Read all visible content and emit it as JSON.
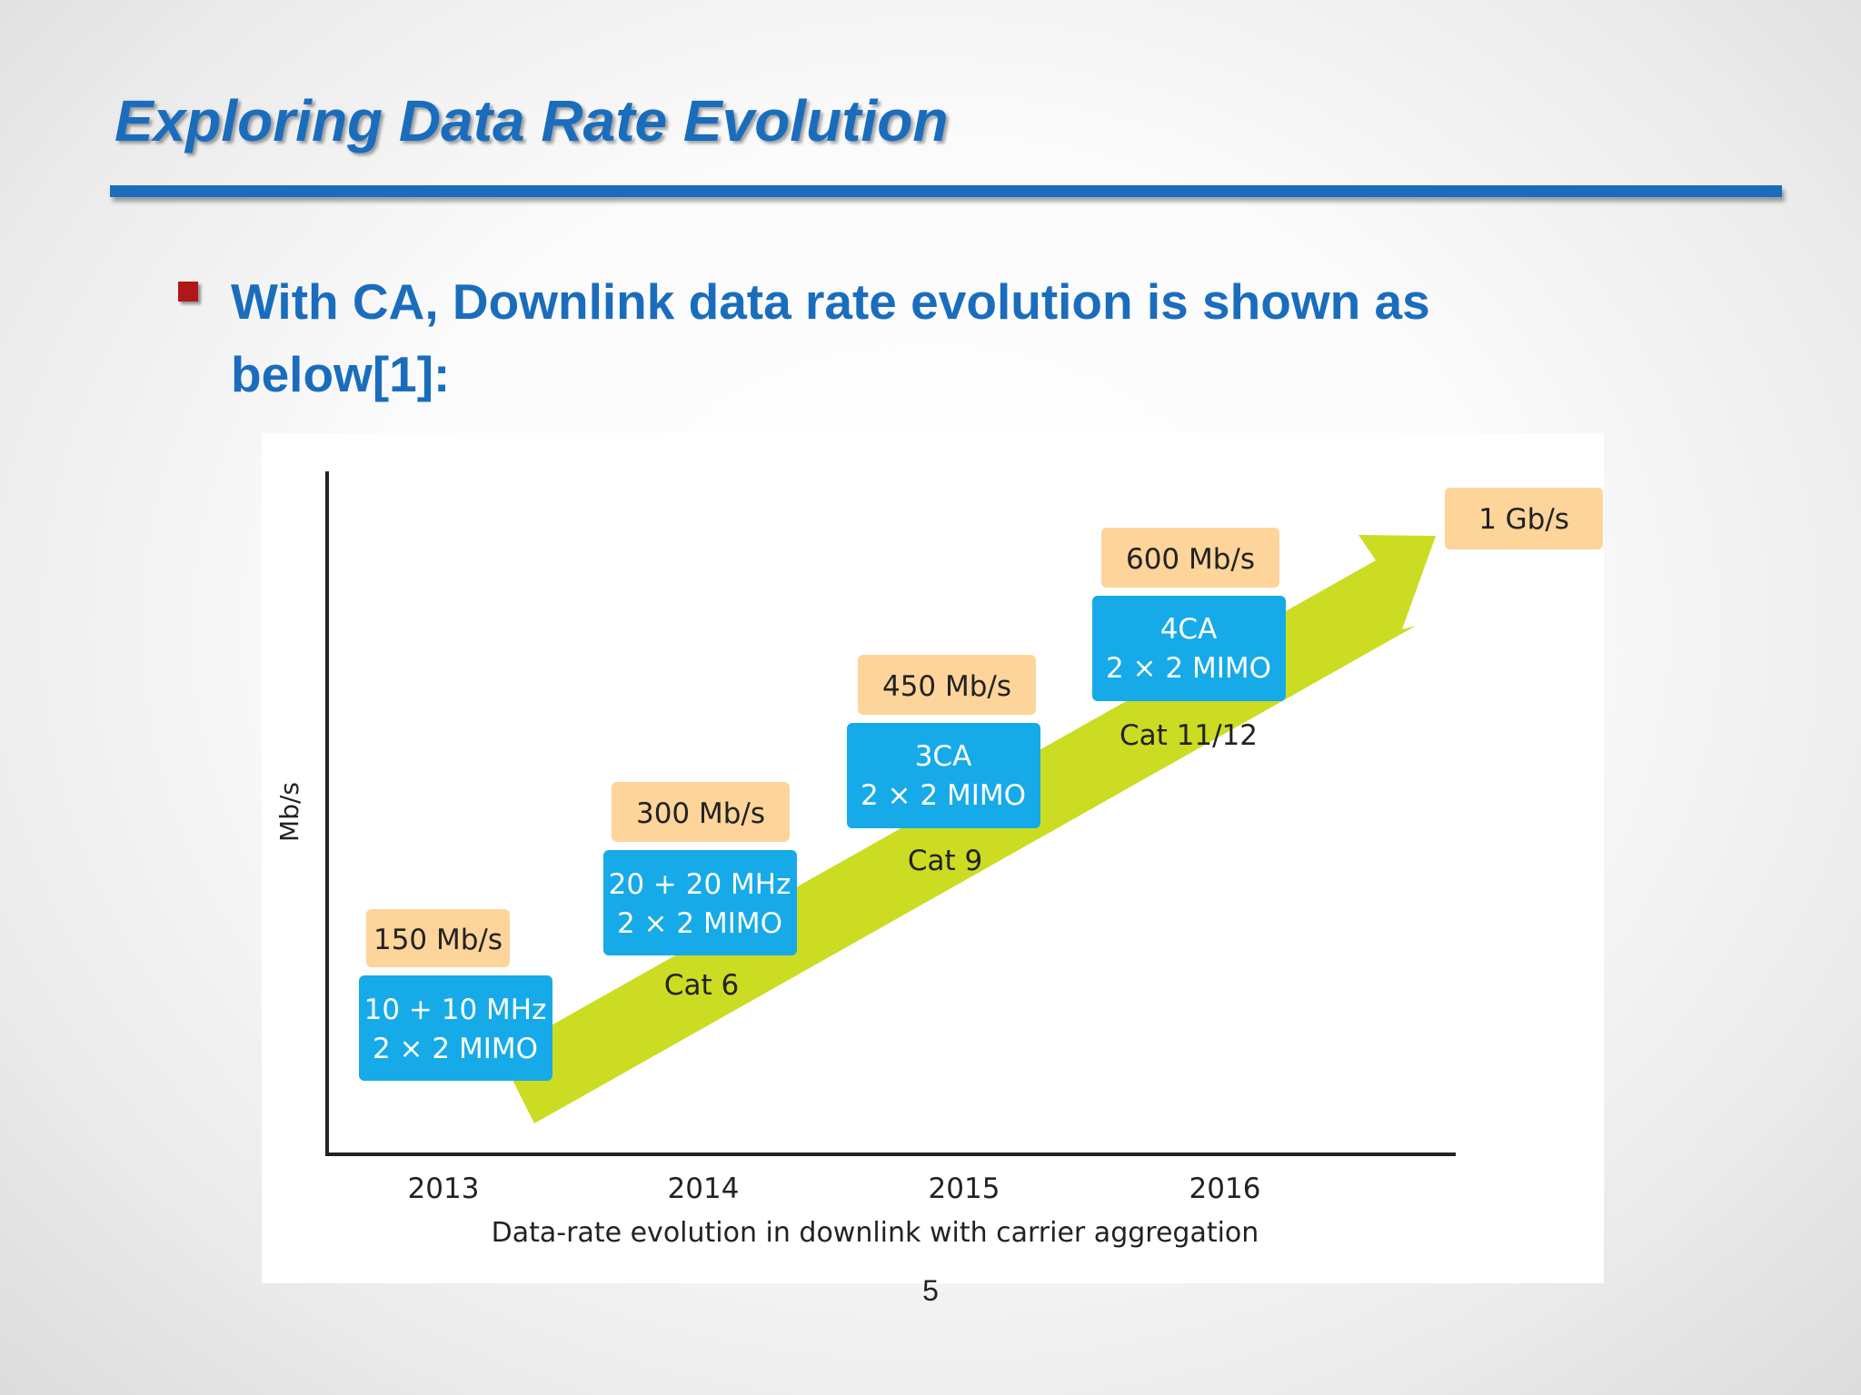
{
  "slide": {
    "title": "Exploring Data Rate Evolution",
    "bullet": "With CA, Downlink data rate evolution is shown as below[1]:",
    "page_number": "5"
  },
  "figure": {
    "y_axis_label": "Mb/s",
    "caption": "Data-rate evolution in downlink with carrier aggregation",
    "years": [
      "2013",
      "2014",
      "2015",
      "2016"
    ],
    "steps": [
      {
        "rate": "150 Mb/s",
        "config_line1": "10 + 10 MHz",
        "config_line2": "2 × 2 MIMO",
        "category": ""
      },
      {
        "rate": "300 Mb/s",
        "config_line1": "20 + 20 MHz",
        "config_line2": "2 × 2 MIMO",
        "category": "Cat 6"
      },
      {
        "rate": "450 Mb/s",
        "config_line1": "3CA",
        "config_line2": "2 × 2 MIMO",
        "category": "Cat 9"
      },
      {
        "rate": "600 Mb/s",
        "config_line1": "4CA",
        "config_line2": "2 × 2 MIMO",
        "category": "Cat 11/12"
      }
    ],
    "target_rate": "1 Gb/s",
    "colors": {
      "rate_box": "#fdd49a",
      "config_box": "#16aae8",
      "arrow": "#cbdc22",
      "axis": "#222222",
      "text": "#222222"
    }
  }
}
